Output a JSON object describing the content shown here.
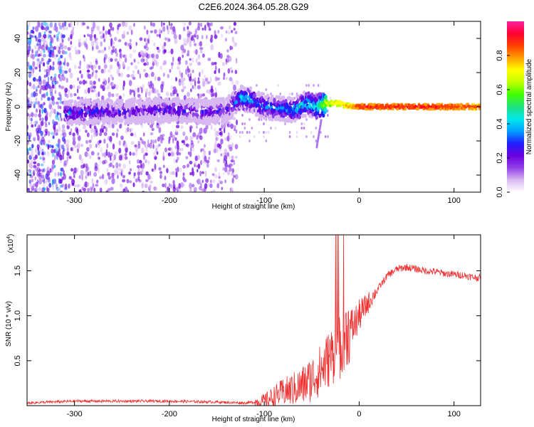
{
  "title": "C2E6.2024.364.05.28.G29",
  "chart_data": [
    {
      "type": "heatmap",
      "title": "C2E6.2024.364.05.28.G29",
      "xlabel": "Height of straight line (km)",
      "ylabel": "Frequency (Hz)",
      "xlim": [
        -350,
        128
      ],
      "ylim": [
        -50,
        50
      ],
      "xticks": [
        -300,
        -200,
        -100,
        0,
        100
      ],
      "xtick_labels": [
        "-300",
        "-200",
        "-100",
        "0",
        "100"
      ],
      "yticks": [
        -40,
        -20,
        0,
        20,
        40
      ],
      "ytick_labels": [
        "-40",
        "-20",
        "0",
        "20",
        "40"
      ],
      "colorbar": {
        "label": "Normalized spectral amplitude",
        "range": [
          0,
          1
        ],
        "ticks": [
          0,
          0.2,
          0.4,
          0.6,
          0.8
        ],
        "tick_labels": [
          "0.0",
          "0.2",
          "0.4",
          "0.6",
          "0.8"
        ],
        "colors": [
          "#ffffff",
          "#d8b8f0",
          "#9040e8",
          "#6a00e0",
          "#2020ff",
          "#00a0ff",
          "#00e8e8",
          "#20e080",
          "#40ff00",
          "#c0ff00",
          "#ffff00",
          "#ffa000",
          "#ff4000",
          "#ff0030",
          "#ff20a0"
        ]
      },
      "signal_track": [
        {
          "x": -310,
          "f": -4,
          "amp": 0.35
        },
        {
          "x": -280,
          "f": -3,
          "amp": 0.35
        },
        {
          "x": -250,
          "f": -3,
          "amp": 0.3
        },
        {
          "x": -220,
          "f": -2,
          "amp": 0.3
        },
        {
          "x": -190,
          "f": -2,
          "amp": 0.32
        },
        {
          "x": -160,
          "f": -3,
          "amp": 0.3
        },
        {
          "x": -140,
          "f": -2,
          "amp": 0.3
        },
        {
          "x": -125,
          "f": 5,
          "amp": 0.45
        },
        {
          "x": -115,
          "f": 4,
          "amp": 0.45
        },
        {
          "x": -100,
          "f": 0,
          "amp": 0.4
        },
        {
          "x": -85,
          "f": -1,
          "amp": 0.42
        },
        {
          "x": -70,
          "f": -2,
          "amp": 0.45
        },
        {
          "x": -55,
          "f": 2,
          "amp": 0.5
        },
        {
          "x": -45,
          "f": 0,
          "amp": 0.5
        },
        {
          "x": -35,
          "f": 2,
          "amp": 0.7
        },
        {
          "x": -20,
          "f": 2,
          "amp": 0.75
        },
        {
          "x": -10,
          "f": 0,
          "amp": 0.8
        },
        {
          "x": 0,
          "f": 0,
          "amp": 0.9
        },
        {
          "x": 50,
          "f": 0,
          "amp": 0.92
        },
        {
          "x": 100,
          "f": 0,
          "amp": 0.9
        },
        {
          "x": 128,
          "f": 0,
          "amp": 0.85
        }
      ]
    },
    {
      "type": "line",
      "xlabel": "Height of straight line (km)",
      "ylabel": "SNR (10 * v/v)",
      "y_multiplier": "(x10",
      "y_multiplier_exp": "4",
      "y_multiplier_close": ")",
      "xlim": [
        -350,
        128
      ],
      "ylim": [
        0,
        1.9
      ],
      "xticks": [
        -300,
        -200,
        -100,
        0,
        100
      ],
      "xtick_labels": [
        "-300",
        "-200",
        "-100",
        "0",
        "100"
      ],
      "yticks": [
        0.5,
        1.0,
        1.5
      ],
      "ytick_labels": [
        "0.5",
        "1.0",
        "1.5"
      ],
      "series": [
        {
          "name": "SNR",
          "color": "#ee3030",
          "x": [
            -350,
            -300,
            -250,
            -200,
            -150,
            -120,
            -100,
            -90,
            -80,
            -70,
            -60,
            -50,
            -40,
            -30,
            -20,
            -15,
            -10,
            -5,
            0,
            10,
            20,
            30,
            40,
            50,
            60,
            70,
            80,
            90,
            100,
            110,
            120,
            128
          ],
          "y": [
            0.03,
            0.05,
            0.05,
            0.05,
            0.04,
            0.03,
            0.05,
            0.1,
            0.15,
            0.18,
            0.22,
            0.3,
            0.4,
            0.55,
            0.65,
            0.8,
            0.85,
            0.9,
            1.0,
            1.15,
            1.3,
            1.45,
            1.52,
            1.54,
            1.52,
            1.5,
            1.49,
            1.47,
            1.46,
            1.45,
            1.43,
            1.42
          ]
        }
      ]
    }
  ]
}
